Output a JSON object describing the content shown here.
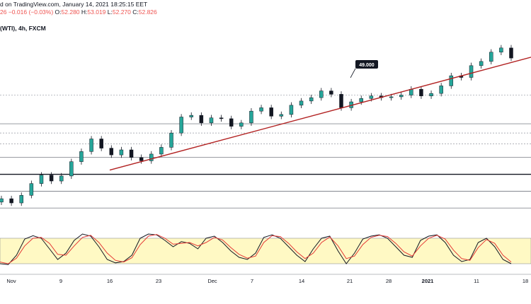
{
  "header": {
    "line1": "d on TradingView.com, January 14, 2021 18:25:15 EET",
    "line2_prefix": "26",
    "change": "−0.016 (−0.03%)",
    "o_label": "O:",
    "o_value": "52.280",
    "h_label": "H:",
    "h_value": "53.019",
    "l_label": "L:",
    "l_value": "52.270",
    "c_label": "C:",
    "c_value": "52.826",
    "symbol": "(WTI), 4h, FXCM"
  },
  "colors": {
    "up": "#26a69a",
    "down": "#ef5350",
    "candle": "#131722",
    "trendline": "#b22222",
    "stoch_k": "#131722",
    "stoch_d": "#e53935",
    "stoch_band": "#fff9c4"
  },
  "chart_data": [
    {
      "type": "line",
      "title": "",
      "x_ticks": [
        "Nov",
        "9",
        "16",
        "23",
        "Dec",
        "7",
        "14",
        "21",
        "28",
        "2021",
        "11",
        "18"
      ],
      "x_ticks_bold": [
        "2021"
      ],
      "callout": "49.000",
      "trendline": {
        "from": {
          "date": "Nov 16",
          "price": 39.5
        },
        "to": {
          "date": "Jan 14",
          "price": 52.9
        }
      },
      "horizontal_levels": [
        {
          "price": 48.4,
          "style": "dotted"
        },
        {
          "price": 45.0,
          "style": "solid"
        },
        {
          "price": 43.9,
          "style": "dotted"
        },
        {
          "price": 42.6,
          "style": "dotted"
        },
        {
          "price": 41.0,
          "style": "solid"
        },
        {
          "price": 39.0,
          "style": "solid-thick"
        },
        {
          "price": 37.0,
          "style": "solid"
        },
        {
          "price": 35.0,
          "style": "solid"
        }
      ],
      "series": [
        {
          "values": [
            36.1,
            35.6,
            36.5,
            37.9,
            38.9,
            38.2,
            38.8,
            40.5,
            41.7,
            43.2,
            42.1,
            41.3,
            41.9,
            41.0,
            40.6,
            41.4,
            42.2,
            43.9,
            45.8,
            46.0,
            45.1,
            45.7,
            45.6,
            44.7,
            45.1,
            46.5,
            46.9,
            45.9,
            46.1,
            47.2,
            47.7,
            48.1,
            48.9,
            48.5,
            46.9,
            47.6,
            48.0,
            48.3,
            48.1,
            48.2,
            48.4,
            49.1,
            48.3,
            48.6,
            49.5,
            50.7,
            50.5,
            51.9,
            52.4,
            53.5,
            54.0,
            52.8
          ]
        }
      ]
    },
    {
      "type": "line",
      "title": "",
      "ylim": [
        0,
        100
      ],
      "band": [
        20,
        80
      ],
      "series": [
        {
          "values": [
            20,
            18,
            40,
            78,
            86,
            80,
            55,
            30,
            45,
            75,
            90,
            85,
            60,
            30,
            22,
            25,
            40,
            80,
            90,
            88,
            75,
            60,
            72,
            68,
            55,
            80,
            85,
            70,
            50,
            35,
            30,
            45,
            82,
            88,
            80,
            60,
            40,
            25,
            55,
            80,
            85,
            50,
            20,
            45,
            78,
            85,
            88,
            80,
            60,
            40,
            35,
            75,
            85,
            88,
            70,
            40,
            25,
            30,
            70,
            80,
            60,
            30,
            20
          ]
        },
        {
          "values": [
            24,
            20,
            33,
            62,
            80,
            82,
            68,
            42,
            40,
            62,
            82,
            87,
            70,
            45,
            28,
            24,
            34,
            65,
            85,
            89,
            80,
            66,
            68,
            70,
            62,
            70,
            82,
            76,
            58,
            42,
            33,
            38,
            70,
            86,
            84,
            68,
            48,
            32,
            45,
            70,
            83,
            62,
            32,
            38,
            65,
            82,
            87,
            84,
            68,
            48,
            38,
            62,
            80,
            87,
            78,
            52,
            32,
            28,
            58,
            77,
            68,
            40,
            24
          ]
        }
      ]
    }
  ]
}
